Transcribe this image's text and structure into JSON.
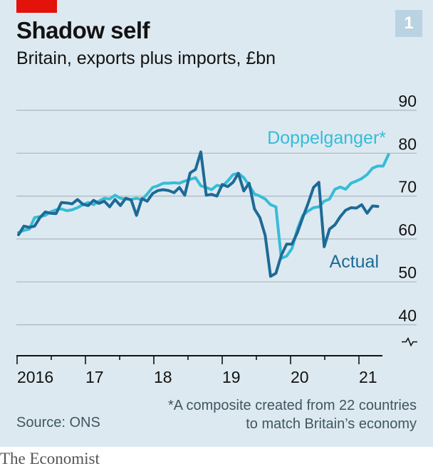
{
  "header": {
    "title": "Shadow self",
    "subtitle": "Britain, exports plus imports, £bn",
    "chart_number": "1"
  },
  "footer": {
    "source": "Source: ONS",
    "footnote_line1": "*A composite created from 22 countries",
    "footnote_line2": "to match Britain’s economy",
    "brand": "The Economist"
  },
  "colors": {
    "actual": "#1d6a96",
    "doppelganger": "#36bcd8",
    "grid": "#a9b7bf",
    "background": "#dde9f0"
  },
  "chart_data": {
    "type": "line",
    "title": "Shadow self",
    "subtitle": "Britain, exports plus imports, £bn",
    "x_tick_labels": [
      "2016",
      "17",
      "18",
      "19",
      "20",
      "21"
    ],
    "y_ticks": [
      40,
      50,
      60,
      70,
      80,
      90
    ],
    "ylim": [
      36,
      92
    ],
    "y_axis_broken_below": 40,
    "y_axis_side": "right",
    "grid": "horizontal",
    "series": [
      {
        "name": "Actual",
        "color": "#1d6a96",
        "start": "2016-01",
        "values": [
          61,
          63,
          62.7,
          63,
          65,
          66.3,
          66,
          65.9,
          68.5,
          68.4,
          68.2,
          69.2,
          68.1,
          67.8,
          69,
          68.3,
          68.8,
          67.5,
          69.2,
          67.8,
          69.5,
          69.1,
          65.5,
          69.4,
          68.8,
          70.6,
          71.3,
          71.5,
          71.3,
          70.8,
          72,
          70.2,
          75.4,
          76.2,
          80.3,
          70.2,
          70.4,
          70,
          72.7,
          72.2,
          73.2,
          75.3,
          71.2,
          73,
          67,
          65,
          60.8,
          51.3,
          52,
          56.2,
          58.8,
          58.8,
          61.5,
          65,
          68.3,
          72,
          73.2,
          58.2,
          62.3,
          63.3,
          65.2,
          66.7,
          67.3,
          67.2,
          68,
          66,
          67.7,
          67.6
        ]
      },
      {
        "name": "Doppelganger*",
        "color": "#36bcd8",
        "start": "2016-01",
        "values": [
          61.5,
          62,
          62.3,
          65,
          65.2,
          65.5,
          66.3,
          66.8,
          67,
          66.6,
          66.8,
          67.3,
          68,
          68.5,
          68,
          68.8,
          69.5,
          69.3,
          70.2,
          69.5,
          69.3,
          69.2,
          69.5,
          69.1,
          70.5,
          72,
          72.4,
          73,
          73,
          73.1,
          73,
          73.5,
          73.9,
          74.3,
          72.4,
          72,
          71.5,
          72.5,
          72.3,
          73.5,
          75,
          75.3,
          74.3,
          72.5,
          70.5,
          70,
          69.3,
          68,
          67.5,
          55.5,
          56,
          57.8,
          62.3,
          65.5,
          66.5,
          67.3,
          67.5,
          68.8,
          69.3,
          71.6,
          72.1,
          71.6,
          73,
          73.5,
          74.1,
          75,
          76.5,
          77,
          77,
          79.7
        ]
      }
    ],
    "annotations": [
      {
        "text": "Doppelganger*",
        "series": "Doppelganger*"
      },
      {
        "text": "Actual",
        "series": "Actual"
      }
    ]
  }
}
